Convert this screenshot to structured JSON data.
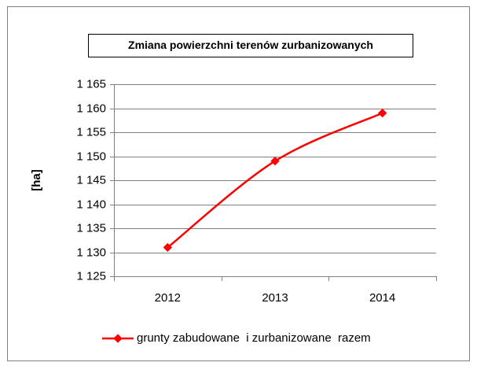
{
  "chart_data": {
    "type": "line",
    "title": "Zmiana powierzchni terenów zurbanizowanych",
    "y_label": "[ha]",
    "categories": [
      "2012",
      "2013",
      "2014"
    ],
    "series": [
      {
        "name": "grunty zabudowane  i zurbanizowane  razem",
        "color": "#ff0000",
        "values": [
          1131,
          1149,
          1159
        ]
      }
    ],
    "ylim": [
      1125,
      1165
    ],
    "yticks": [
      {
        "value": 1125,
        "label": "1 125"
      },
      {
        "value": 1130,
        "label": "1 130"
      },
      {
        "value": 1135,
        "label": "1 135"
      },
      {
        "value": 1140,
        "label": "1 140"
      },
      {
        "value": 1145,
        "label": "1 145"
      },
      {
        "value": 1150,
        "label": "1 150"
      },
      {
        "value": 1155,
        "label": "1 155"
      },
      {
        "value": 1160,
        "label": "1 160"
      },
      {
        "value": 1165,
        "label": "1 165"
      }
    ],
    "grid": true,
    "legend": "bottom"
  }
}
